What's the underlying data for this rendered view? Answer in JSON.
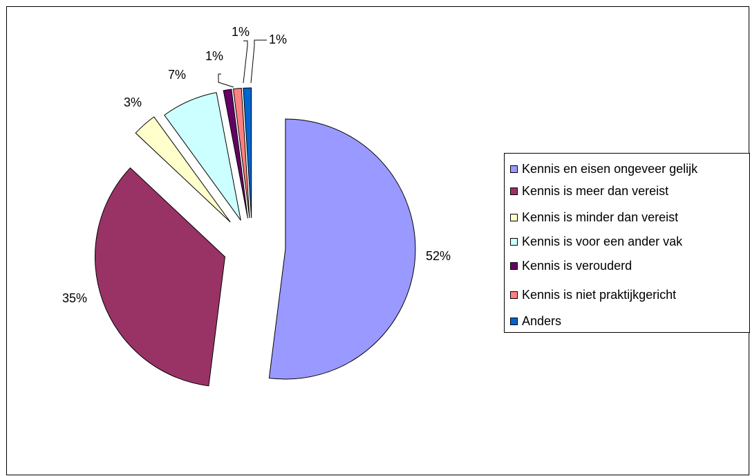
{
  "chart_data": {
    "type": "pie",
    "title": "",
    "slices": [
      {
        "label": "Kennis en eisen ongeveer gelijk",
        "value": 52,
        "display": "52%",
        "color": "#9999ff"
      },
      {
        "label": "Kennis is meer dan vereist",
        "value": 35,
        "display": "35%",
        "color": "#993366"
      },
      {
        "label": "Kennis is minder dan vereist",
        "value": 3,
        "display": "3%",
        "color": "#ffffcc"
      },
      {
        "label": "Kennis is voor een ander vak",
        "value": 7,
        "display": "7%",
        "color": "#ccffff"
      },
      {
        "label": "Kennis is verouderd",
        "value": 1,
        "display": "1%",
        "color": "#660066"
      },
      {
        "label": "Kennis is niet praktijkgericht",
        "value": 1,
        "display": "1%",
        "color": "#ff8080"
      },
      {
        "label": "Anders",
        "value": 1,
        "display": "1%",
        "color": "#0066cc"
      }
    ],
    "exploded": true,
    "legend_position": "right"
  }
}
